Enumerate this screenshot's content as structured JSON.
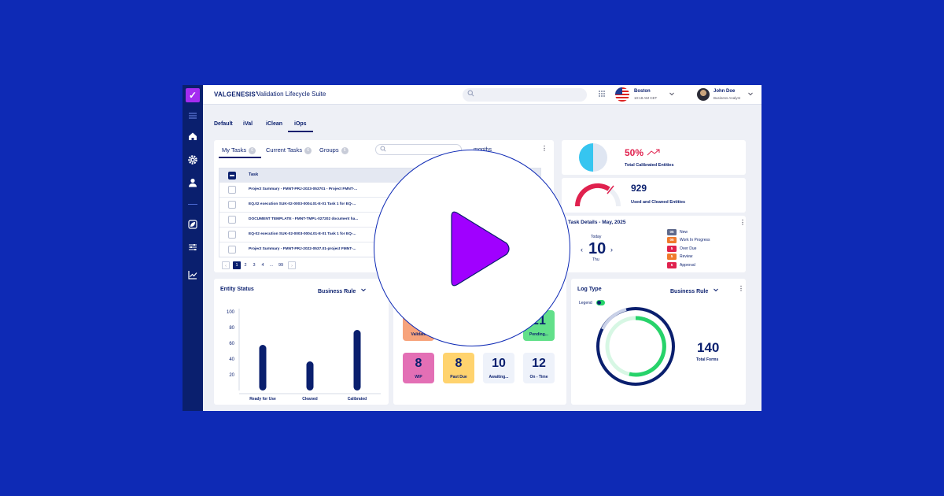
{
  "sidebar": {
    "logo_glyph": "✓",
    "icons": [
      "menu-icon",
      "home-icon",
      "gear-icon",
      "user-icon",
      "leaf-icon",
      "sliders-icon",
      "line-chart-icon"
    ]
  },
  "topbar": {
    "brand": "VALGENESIS",
    "brand_mark": "®",
    "product": "Validation Lifecycle Suite",
    "location": {
      "city": "Boston",
      "time": "10:18 AM CET"
    },
    "user": {
      "name": "John Doe",
      "role": "Business Analyst"
    }
  },
  "module_tabs": [
    "Default",
    "iVal",
    "iClean",
    "iOps"
  ],
  "tasks": {
    "tabs": [
      {
        "label": "My Tasks",
        "count": "6"
      },
      {
        "label": "Current Tasks",
        "count": "6"
      },
      {
        "label": "Groups",
        "count": "6"
      }
    ],
    "period": "months",
    "column_task": "Task",
    "rows": [
      "Project Summary - FMNT-PRJ-2023-053701 - Project FMNT-...",
      "EQ.02 execution SUK-02-0003-0004.01-E-01 Task 1 for EQ-...",
      "DOCUMENT TEMPLATE - FMNT-TMPL-027202 document ha...",
      "EQ-02 execution SUK-02-0003-0004.01-E-01 Task 1 for EQ-...",
      "Project Summary - FMNT-PRJ-2022-0537.01-project FMNT-..."
    ],
    "pager": [
      "1",
      "2",
      "3",
      "4",
      "...",
      "99"
    ]
  },
  "calibrated": {
    "value": "50%",
    "label": "Total Calibrated Entities",
    "fraction": 0.5
  },
  "cleaned": {
    "value": "929",
    "label": "Used and Cleaned Entities"
  },
  "task_details": {
    "title": "Task Details - May, 2025",
    "today_label": "Today",
    "day": "10",
    "weekday": "Thu",
    "legend": [
      {
        "count": "05",
        "label": "New",
        "color": "#5f6a8c"
      },
      {
        "count": "05",
        "label": "Work In Progress",
        "color": "#f07a2c"
      },
      {
        "count": "5",
        "label": "Over Due",
        "color": "#e0214e"
      },
      {
        "count": "5",
        "label": "Review",
        "color": "#f07a2c"
      },
      {
        "count": "5",
        "label": "Approval",
        "color": "#e0214e"
      }
    ]
  },
  "entity_status": {
    "title": "Entity Status",
    "filter": "Business Rule",
    "chart_data": {
      "type": "bar",
      "categories": [
        "Ready for Use",
        "Cleaned",
        "Calibrated"
      ],
      "values": [
        58,
        37,
        77
      ],
      "yticks": [
        20,
        40,
        60,
        80,
        100
      ],
      "ylim": [
        0,
        100
      ]
    }
  },
  "status_tiles": {
    "top": [
      {
        "num": "",
        "label": "Validate",
        "color": "#f7a37c"
      },
      {
        "num": "21",
        "label": "Pending...",
        "color": "#62e08a"
      }
    ],
    "bottom": [
      {
        "num": "8",
        "label": "WIP",
        "color": "#e36fb5"
      },
      {
        "num": "8",
        "label": "Past Due",
        "color": "#ffd36e"
      },
      {
        "num": "10",
        "label": "Awaiting...",
        "color": "#eef2fa"
      },
      {
        "num": "12",
        "label": "On - Time",
        "color": "#eef2fa"
      }
    ]
  },
  "log_type": {
    "title": "Log Type",
    "filter": "Business Rule",
    "legend_label": "Legend",
    "total": "140",
    "total_label": "Total Forms"
  },
  "colors": {
    "navy": "#0a1f6e",
    "accent_purple": "#a42cf0",
    "play": "#a000ff",
    "cyan": "#36c5f0",
    "red": "#e0214e",
    "green": "#27d36a",
    "background": "#0e2ab5"
  },
  "play_button": {
    "icon": "play-icon"
  }
}
